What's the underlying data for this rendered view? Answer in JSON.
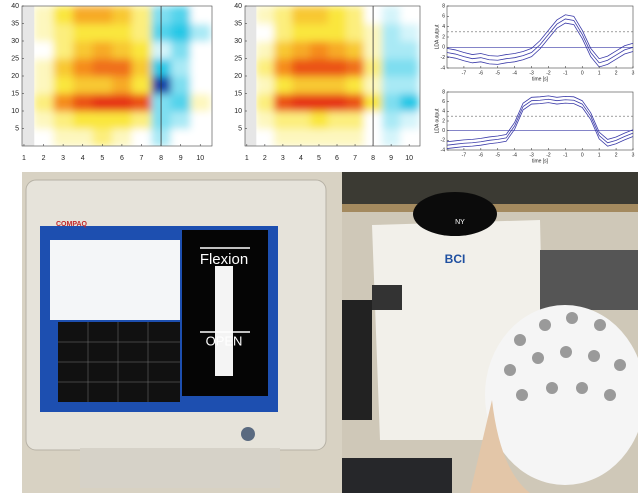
{
  "chart_data": [
    {
      "type": "heatmap",
      "x": [
        1,
        2,
        3,
        4,
        5,
        6,
        7,
        8,
        9,
        10
      ],
      "y": [
        2.5,
        7.5,
        12.5,
        17.5,
        22.5,
        27.5,
        32.5,
        37.5
      ],
      "z": [
        [
          null,
          0,
          0.1,
          0.1,
          0.2,
          0.1,
          0,
          -0.2,
          0,
          0
        ],
        [
          null,
          0.1,
          0.2,
          0.3,
          0.3,
          0.3,
          0.2,
          -0.3,
          -0.2,
          0
        ],
        [
          null,
          0.2,
          0.6,
          0.8,
          0.9,
          0.9,
          0.8,
          -0.3,
          -0.4,
          0.1
        ],
        [
          null,
          0.1,
          0.3,
          0.4,
          0.4,
          0.5,
          0.3,
          -0.9,
          -0.3,
          0
        ],
        [
          null,
          0.1,
          0.4,
          0.6,
          0.7,
          0.7,
          0.4,
          -0.5,
          -0.2,
          0
        ],
        [
          null,
          0,
          0.2,
          0.4,
          0.5,
          0.4,
          0.3,
          -0.1,
          -0.3,
          0
        ],
        [
          null,
          0.1,
          0.2,
          0.3,
          0.3,
          0.3,
          0.2,
          -0.4,
          -0.5,
          -0.2
        ],
        [
          null,
          0.1,
          0.3,
          0.5,
          0.5,
          0.4,
          0.2,
          -0.3,
          -0.4,
          0
        ]
      ],
      "xlim": [
        0.9,
        10.6
      ],
      "ylim": [
        0,
        40
      ],
      "xticks": [
        1,
        2,
        3,
        4,
        5,
        6,
        7,
        8,
        9,
        10
      ],
      "yticks": [
        5,
        10,
        15,
        20,
        25,
        30,
        35,
        40
      ],
      "vline": 8
    },
    {
      "type": "heatmap",
      "x": [
        1,
        2,
        3,
        4,
        5,
        6,
        7,
        8,
        9,
        10
      ],
      "y": [
        2.5,
        7.5,
        12.5,
        17.5,
        22.5,
        27.5,
        32.5,
        37.5
      ],
      "z": [
        [
          null,
          0,
          0.1,
          0.1,
          0.1,
          0.1,
          0.1,
          0,
          -0.1,
          0
        ],
        [
          null,
          0.1,
          0.2,
          0.2,
          0.3,
          0.2,
          0.2,
          0,
          -0.2,
          -0.1
        ],
        [
          null,
          0.2,
          0.8,
          0.9,
          0.9,
          0.9,
          0.8,
          0.3,
          -0.3,
          -0.5
        ],
        [
          null,
          0.1,
          0.3,
          0.4,
          0.4,
          0.4,
          0.3,
          0.1,
          -0.2,
          -0.2
        ],
        [
          null,
          0.2,
          0.6,
          0.8,
          0.8,
          0.8,
          0.7,
          0.2,
          -0.3,
          -0.3
        ],
        [
          null,
          0.1,
          0.4,
          0.5,
          0.6,
          0.5,
          0.4,
          0.1,
          -0.2,
          -0.2
        ],
        [
          null,
          0,
          0.2,
          0.3,
          0.3,
          0.3,
          0.2,
          0.1,
          -0.2,
          -0.1
        ],
        [
          null,
          0.1,
          0.2,
          0.4,
          0.4,
          0.3,
          0.2,
          0,
          -0.1,
          0
        ]
      ],
      "xlim": [
        0.9,
        10.6
      ],
      "ylim": [
        0,
        40
      ],
      "xticks": [
        1,
        2,
        3,
        4,
        5,
        6,
        7,
        8,
        9,
        10
      ],
      "yticks": [
        5,
        10,
        15,
        20,
        25,
        30,
        35,
        40
      ],
      "vline": 8
    },
    {
      "type": "line",
      "xlabel": "time [s]",
      "ylabel": "LDA output",
      "x": [
        -8,
        -7.5,
        -7,
        -6.5,
        -6,
        -5.5,
        -5,
        -4.5,
        -4,
        -3.5,
        -3,
        -2.5,
        -2,
        -1.5,
        -1,
        -0.5,
        0,
        0.5,
        1,
        1.5,
        2,
        2.5,
        3
      ],
      "series": [
        {
          "color": "#3a3aa8",
          "values": [
            -0.2,
            -0.5,
            -1,
            -1.4,
            -1.2,
            -1.6,
            -1.7,
            -1.4,
            -1.2,
            -0.8,
            -0.2,
            1.3,
            3.3,
            5.3,
            6.3,
            6,
            3.3,
            -0.2,
            -2.2,
            -1.7,
            -0.7,
            0.3,
            0.8
          ]
        },
        {
          "color": "#3a3aa8",
          "values": [
            -1,
            -1.3,
            -1.8,
            -2.2,
            -2,
            -2.4,
            -2.5,
            -2.2,
            -2,
            -1.6,
            -1,
            0.5,
            2.5,
            4.5,
            5.5,
            5.2,
            2.5,
            -1,
            -3,
            -2.5,
            -1.5,
            -0.5,
            0
          ]
        },
        {
          "color": "#3a3aa8",
          "values": [
            -1.8,
            -2.1,
            -2.6,
            -3,
            -2.8,
            -3.2,
            -3.3,
            -3,
            -2.8,
            -2.4,
            -1.8,
            -0.3,
            1.7,
            3.7,
            4.7,
            4.4,
            1.7,
            -1.8,
            -3.8,
            -3.3,
            -2.3,
            -1.3,
            -0.8
          ]
        }
      ],
      "hlines": [
        {
          "value": 0,
          "style": "solid"
        },
        {
          "value": 3,
          "style": "dashed"
        }
      ],
      "xlim": [
        -8,
        3
      ],
      "ylim": [
        -4,
        8
      ],
      "xticks": [
        -7,
        -6,
        -5,
        -4,
        -3,
        -2,
        -1,
        0,
        1,
        2,
        3
      ],
      "yticks": [
        -4,
        -2,
        0,
        2,
        4,
        6,
        8
      ]
    },
    {
      "type": "line",
      "xlabel": "time [s]",
      "ylabel": "LDA output",
      "x": [
        -8,
        -7.5,
        -7,
        -6.5,
        -6,
        -5.5,
        -5,
        -4.5,
        -4,
        -3.5,
        -3,
        -2.5,
        -2,
        -1.5,
        -1,
        -0.5,
        0,
        0.5,
        1,
        1.5,
        2,
        2.5,
        3
      ],
      "series": [
        {
          "color": "#3a3aa8",
          "values": [
            -2.3,
            -2.1,
            -1.9,
            -1.8,
            -1.6,
            -1.3,
            -1.1,
            -0.8,
            1.7,
            5.7,
            6.9,
            7,
            7.2,
            6.9,
            7.1,
            7,
            6.2,
            3.7,
            -0.3,
            -1.8,
            -1.3,
            -0.5,
            0.2
          ]
        },
        {
          "color": "#3a3aa8",
          "values": [
            -3,
            -2.8,
            -2.6,
            -2.5,
            -2.3,
            -2,
            -1.8,
            -1.5,
            1,
            5,
            6.2,
            6.3,
            6.5,
            6.2,
            6.4,
            6.3,
            5.5,
            3,
            -1,
            -2.5,
            -2,
            -1.2,
            -0.5
          ]
        },
        {
          "color": "#3a3aa8",
          "values": [
            -3.7,
            -3.5,
            -3.3,
            -3.2,
            -3,
            -2.7,
            -2.5,
            -2.2,
            0.3,
            4.3,
            5.5,
            5.6,
            5.8,
            5.5,
            5.7,
            5.6,
            4.8,
            2.3,
            -1.7,
            -3.2,
            -2.7,
            -1.9,
            -1.2
          ]
        }
      ],
      "hlines": [
        {
          "value": 0,
          "style": "solid"
        },
        {
          "value": 3,
          "style": "dashed"
        }
      ],
      "xlim": [
        -8,
        3
      ],
      "ylim": [
        -4,
        8
      ],
      "xticks": [
        -7,
        -6,
        -5,
        -4,
        -3,
        -2,
        -1,
        0,
        1,
        2,
        3
      ],
      "yticks": [
        -4,
        -2,
        0,
        2,
        4,
        6,
        8
      ]
    }
  ],
  "photo": {
    "monitor_brand": "COMPAQ",
    "screen_top": "Flexion",
    "screen_bottom": "OPEN",
    "shirt": "BCI",
    "cap": "NY"
  }
}
